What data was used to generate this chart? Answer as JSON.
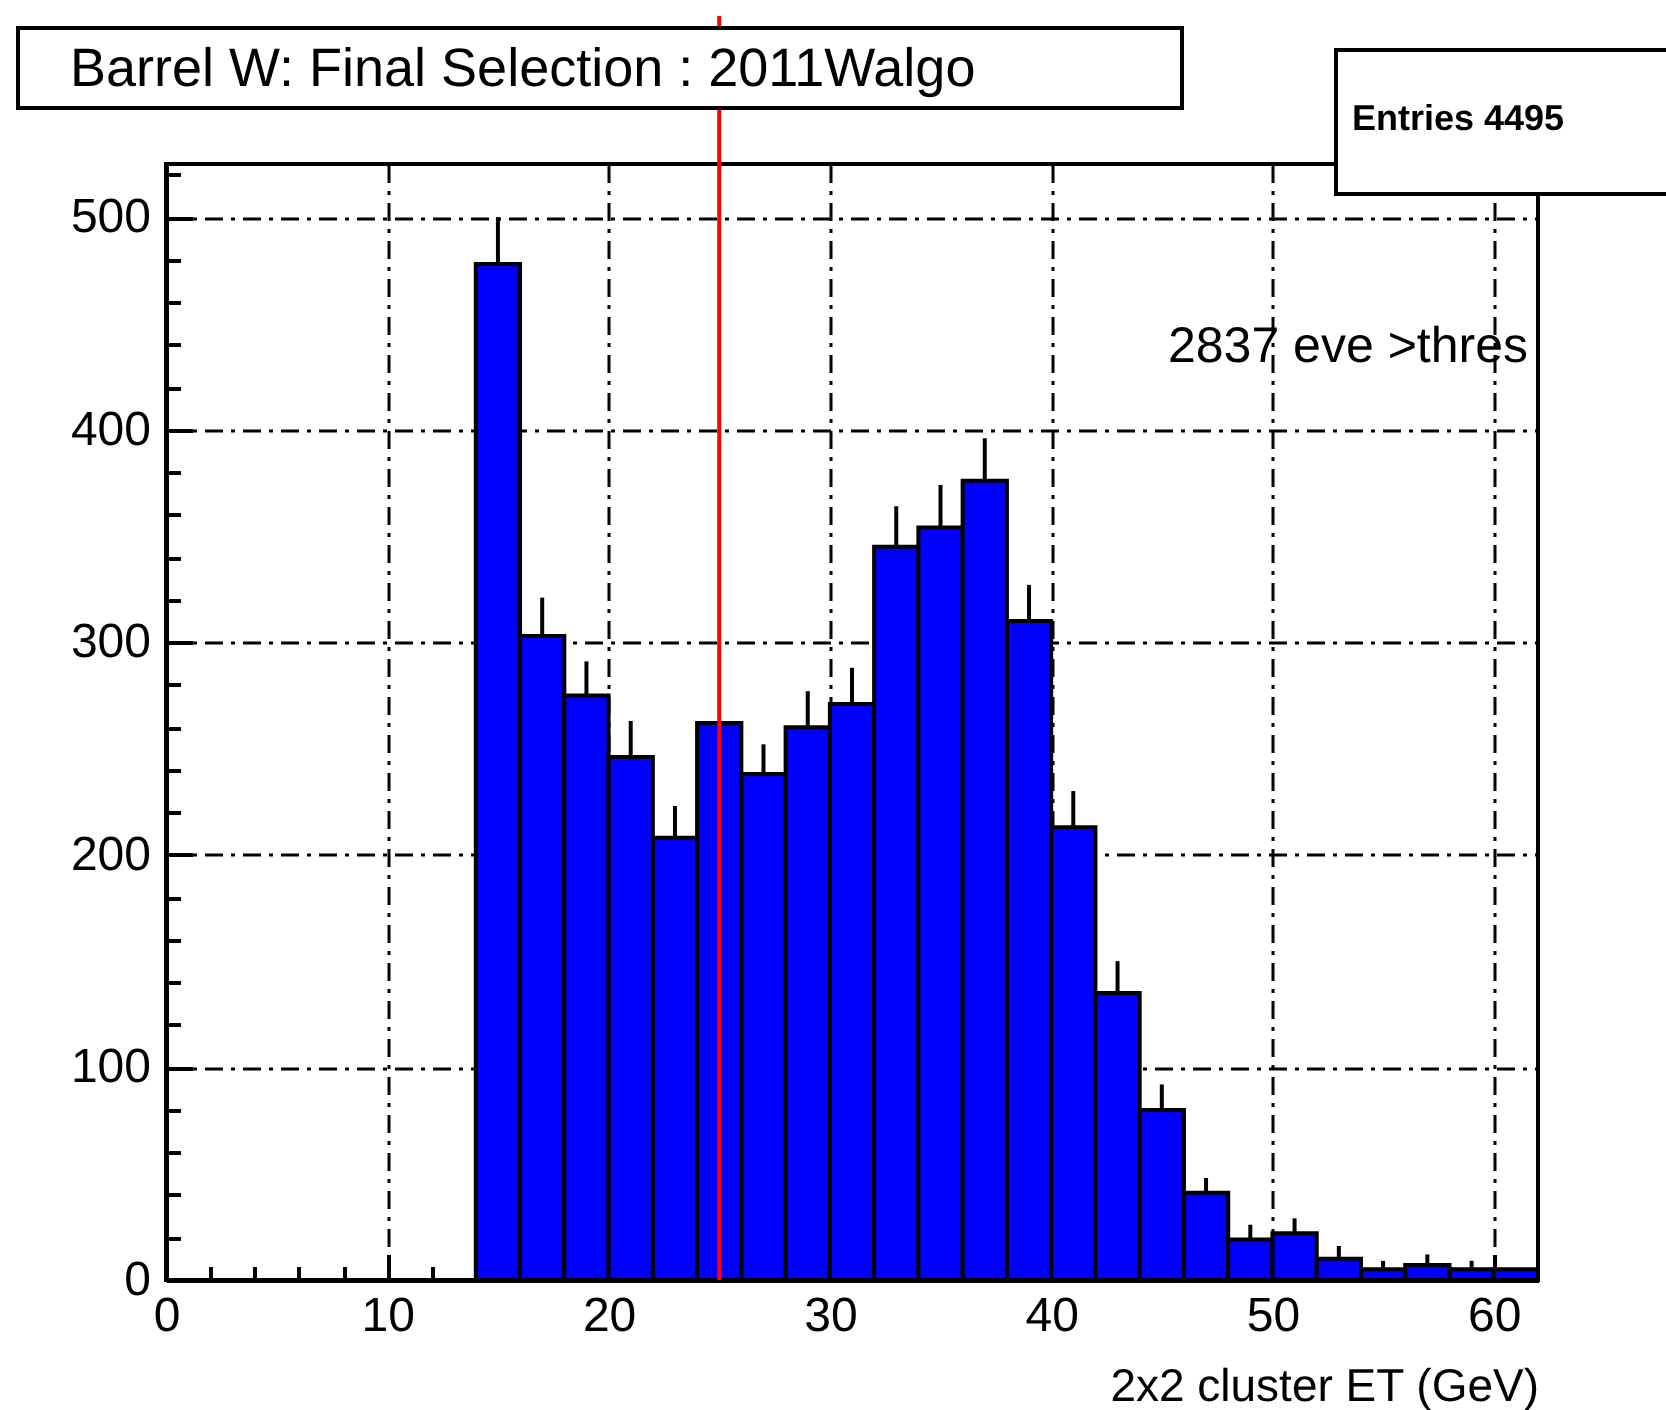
{
  "chart_data": {
    "type": "histogram",
    "title": "Barrel W: Final Selection : 2011Walgo",
    "xlabel": "2x2 cluster ET (GeV)",
    "bins": [
      14,
      16,
      18,
      20,
      22,
      24,
      26,
      28,
      30,
      32,
      34,
      36,
      38,
      40,
      42,
      44,
      46,
      48,
      50,
      52,
      54,
      56,
      58,
      60,
      62
    ],
    "values": [
      478,
      303,
      275,
      246,
      208,
      262,
      238,
      260,
      271,
      345,
      354,
      376,
      310,
      213,
      135,
      80,
      41,
      19,
      22,
      10,
      5,
      7,
      5,
      5
    ],
    "errors": [
      [
        478,
        500
      ],
      [
        303,
        321
      ],
      [
        275,
        291
      ],
      [
        246,
        263
      ],
      [
        208,
        223
      ],
      null,
      [
        238,
        252
      ],
      [
        260,
        277
      ],
      [
        271,
        288
      ],
      [
        345,
        364
      ],
      [
        354,
        374
      ],
      [
        376,
        396
      ],
      [
        310,
        327
      ],
      [
        213,
        230
      ],
      [
        135,
        150
      ],
      [
        80,
        92
      ],
      [
        41,
        48
      ],
      [
        19,
        26
      ],
      [
        22,
        29
      ],
      [
        10,
        16
      ],
      [
        5,
        9
      ],
      [
        7,
        12
      ],
      [
        5,
        9
      ],
      null
    ],
    "color": "#0000ff",
    "xlim": [
      0,
      62
    ],
    "ylim": [
      0,
      525
    ],
    "xticks": [
      0,
      {
        "value": 2,
        "label": null
      },
      {
        "value": 4,
        "label": null
      },
      {
        "value": 6,
        "label": null
      },
      {
        "value": 8,
        "label": null
      },
      10,
      {
        "value": 12,
        "label": null
      },
      {
        "value": 14,
        "label": null
      },
      {
        "value": 16,
        "label": null
      },
      {
        "value": 18,
        "label": null
      },
      20,
      {
        "value": 22,
        "label": null
      },
      {
        "value": 24,
        "label": null
      },
      {
        "value": 26,
        "label": null
      },
      {
        "value": 28,
        "label": null
      },
      30,
      {
        "value": 32,
        "label": null
      },
      {
        "value": 34,
        "label": null
      },
      {
        "value": 36,
        "label": null
      },
      {
        "value": 38,
        "label": null
      },
      40,
      {
        "value": 42,
        "label": null
      },
      {
        "value": 44,
        "label": null
      },
      {
        "value": 46,
        "label": null
      },
      {
        "value": 48,
        "label": null
      },
      50,
      {
        "value": 52,
        "label": null
      },
      {
        "value": 54,
        "label": null
      },
      {
        "value": 56,
        "label": null
      },
      {
        "value": 58,
        "label": null
      },
      60
    ],
    "yticks": [
      0,
      {
        "value": 20,
        "label": null
      },
      {
        "value": 40,
        "label": null
      },
      {
        "value": 60,
        "label": null
      },
      {
        "value": 80,
        "label": null
      },
      100,
      {
        "value": 120,
        "label": null
      },
      {
        "value": 140,
        "label": null
      },
      {
        "value": 160,
        "label": null
      },
      {
        "value": 180,
        "label": null
      },
      200,
      {
        "value": 220,
        "label": null
      },
      {
        "value": 240,
        "label": null
      },
      {
        "value": 260,
        "label": null
      },
      {
        "value": 280,
        "label": null
      },
      300,
      {
        "value": 320,
        "label": null
      },
      {
        "value": 340,
        "label": null
      },
      {
        "value": 360,
        "label": null
      },
      {
        "value": 380,
        "label": null
      },
      400,
      {
        "value": 420,
        "label": null
      },
      {
        "value": 440,
        "label": null
      },
      {
        "value": 460,
        "label": null
      },
      {
        "value": 480,
        "label": null
      },
      500,
      {
        "value": 520,
        "label": null
      }
    ],
    "grid": true,
    "ref_lines": [
      {
        "axis": "x",
        "value": 25,
        "color": "#ff0000"
      }
    ],
    "annotations": [
      "Entries 4495",
      "2837 eve >thres"
    ]
  }
}
